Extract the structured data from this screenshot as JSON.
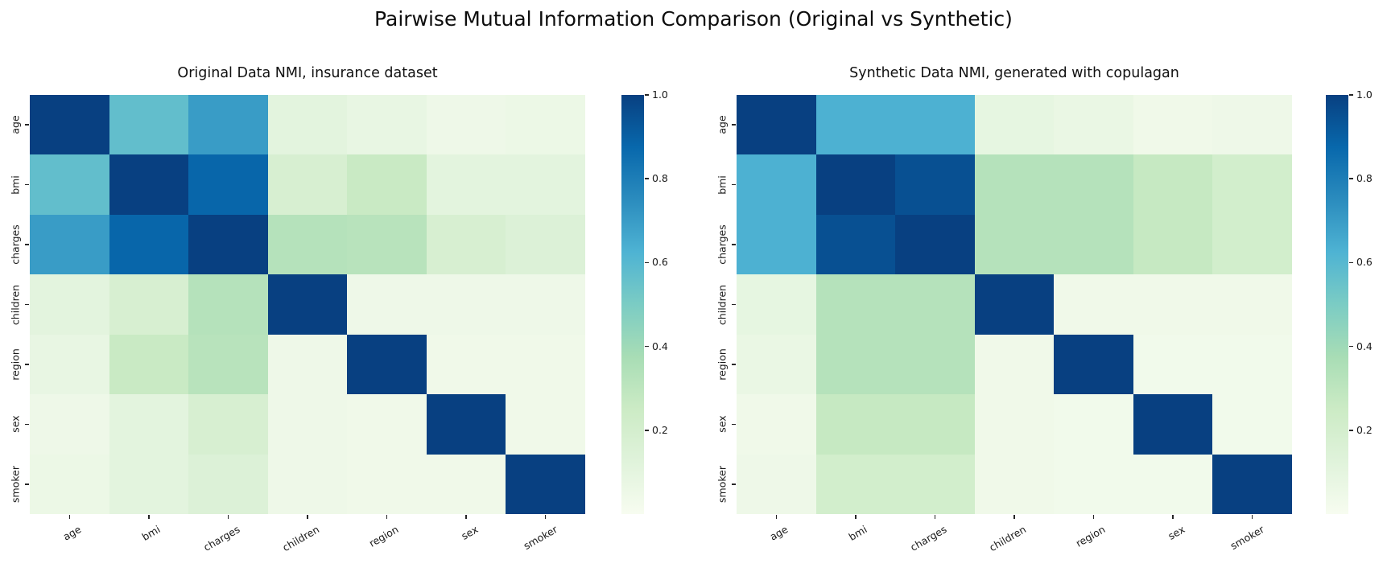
{
  "figure": {
    "suptitle": "Pairwise Mutual Information Comparison (Original vs Synthetic)"
  },
  "labels": [
    "age",
    "bmi",
    "charges",
    "children",
    "region",
    "sex",
    "smoker"
  ],
  "colorbar": {
    "ticks": [
      "1.0",
      "0.8",
      "0.6",
      "0.4",
      "0.2"
    ],
    "tick_values": [
      1.0,
      0.8,
      0.6,
      0.4,
      0.2
    ],
    "colormap": "GnBu"
  },
  "colors": {
    "background": "#ffffff",
    "colormap_low": "#f7fcf0",
    "colormap_high": "#084081",
    "diagonal": "#084081",
    "tick": "#262626",
    "text": "#151515"
  },
  "chart_data": [
    {
      "type": "heatmap",
      "title": "Original Data NMI, insurance dataset",
      "categories": [
        "age",
        "bmi",
        "charges",
        "children",
        "region",
        "sex",
        "smoker"
      ],
      "vmin": 0.0,
      "vmax": 1.0,
      "colormap": "GnBu",
      "legend_position": "right-colorbar",
      "matrix": [
        [
          1.0,
          0.57,
          0.7,
          0.11,
          0.08,
          0.05,
          0.06
        ],
        [
          0.57,
          1.0,
          0.88,
          0.18,
          0.26,
          0.11,
          0.11
        ],
        [
          0.7,
          0.88,
          1.0,
          0.33,
          0.32,
          0.18,
          0.15
        ],
        [
          0.11,
          0.18,
          0.33,
          1.0,
          0.05,
          0.05,
          0.05
        ],
        [
          0.08,
          0.26,
          0.32,
          0.05,
          1.0,
          0.04,
          0.04
        ],
        [
          0.05,
          0.11,
          0.18,
          0.05,
          0.04,
          1.0,
          0.04
        ],
        [
          0.06,
          0.11,
          0.15,
          0.05,
          0.04,
          0.04,
          1.0
        ]
      ]
    },
    {
      "type": "heatmap",
      "title": "Synthetic Data NMI, generated with copulagan",
      "categories": [
        "age",
        "bmi",
        "charges",
        "children",
        "region",
        "sex",
        "smoker"
      ],
      "vmin": 0.0,
      "vmax": 1.0,
      "colormap": "GnBu",
      "legend_position": "right-colorbar",
      "matrix": [
        [
          1.0,
          0.63,
          0.63,
          0.09,
          0.07,
          0.04,
          0.05
        ],
        [
          0.63,
          1.0,
          0.95,
          0.33,
          0.33,
          0.27,
          0.21
        ],
        [
          0.63,
          0.95,
          1.0,
          0.33,
          0.33,
          0.27,
          0.21
        ],
        [
          0.09,
          0.33,
          0.33,
          1.0,
          0.04,
          0.04,
          0.04
        ],
        [
          0.07,
          0.33,
          0.33,
          0.04,
          1.0,
          0.03,
          0.03
        ],
        [
          0.04,
          0.27,
          0.27,
          0.04,
          0.03,
          1.0,
          0.03
        ],
        [
          0.05,
          0.21,
          0.21,
          0.04,
          0.03,
          0.03,
          1.0
        ]
      ]
    }
  ]
}
